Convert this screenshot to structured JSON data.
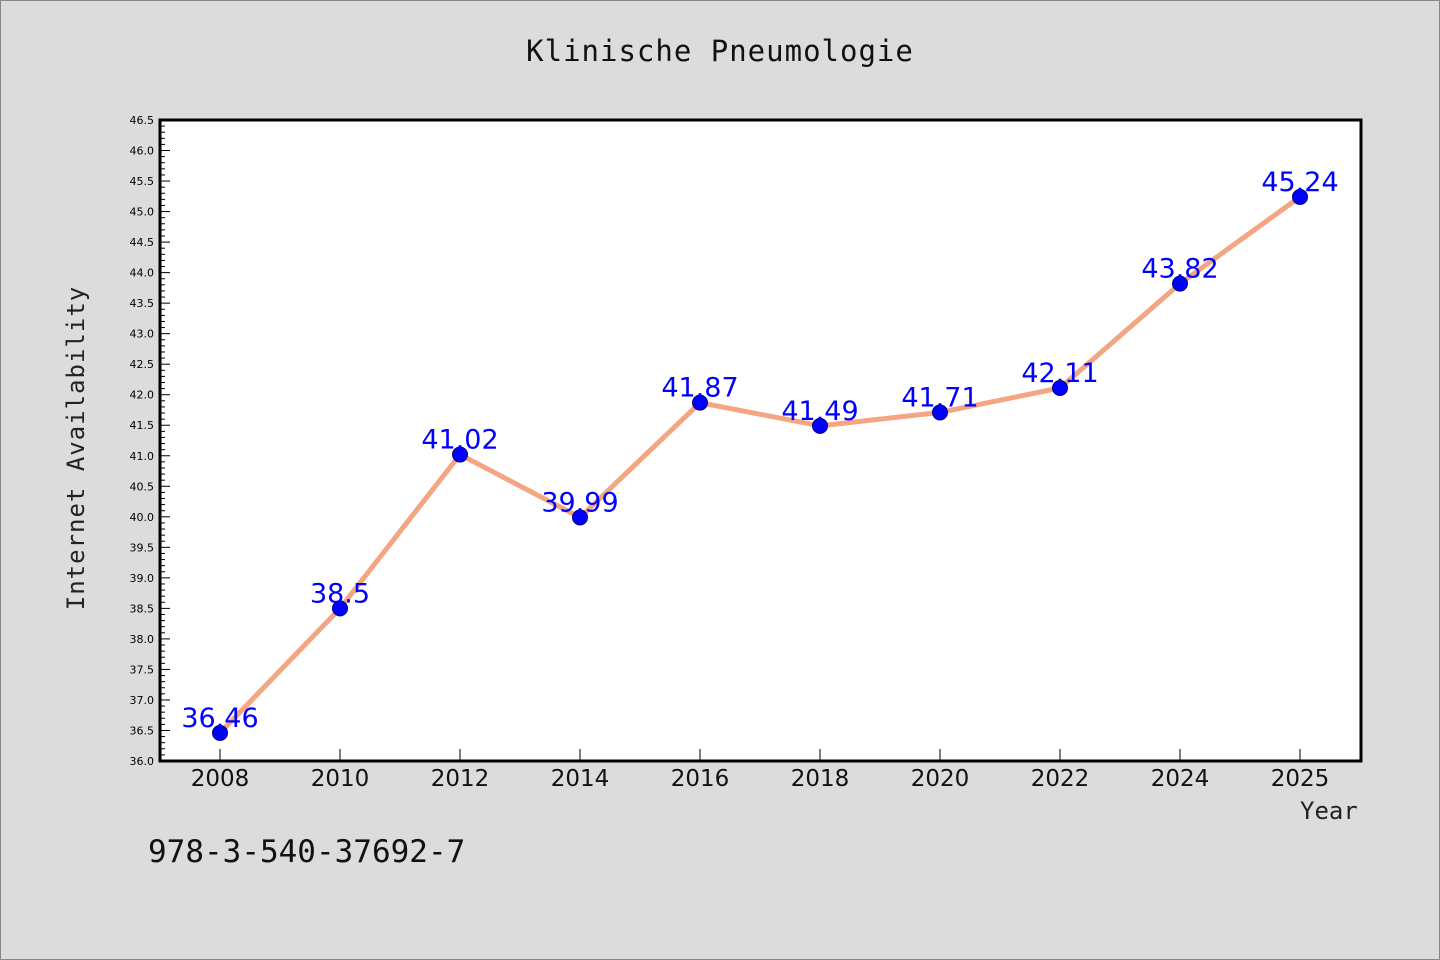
{
  "chart_data": {
    "type": "line",
    "title": "Klinische Pneumologie",
    "xlabel": "Year",
    "ylabel": "Internet Availability",
    "categories": [
      "2008",
      "2010",
      "2012",
      "2014",
      "2016",
      "2018",
      "2020",
      "2022",
      "2024",
      "2025"
    ],
    "series": [
      {
        "values": [
          36.46,
          38.5,
          41.02,
          39.99,
          41.87,
          41.49,
          41.71,
          42.11,
          43.82,
          45.24
        ],
        "labels": [
          "36.46",
          "38.5",
          "41.02",
          "39.99",
          "41.87",
          "41.49",
          "41.71",
          "42.11",
          "43.82",
          "45.24"
        ],
        "line_color": "#f4a582",
        "marker_color": "#0000ff",
        "label_color": "#0000ff"
      }
    ],
    "ylim": [
      36.0,
      46.5
    ],
    "ytick_step": 0.5,
    "grid": false,
    "legend": "none"
  },
  "footer": {
    "isbn": "978-3-540-37692-7"
  }
}
